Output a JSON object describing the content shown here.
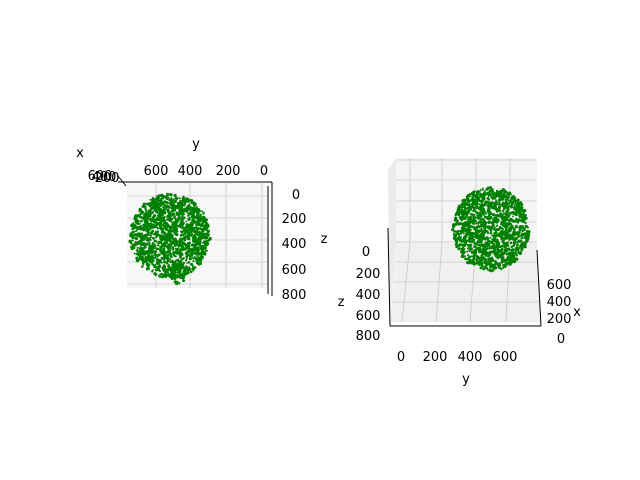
{
  "colors": {
    "points": "#008000",
    "pane": "#f2f2f2",
    "grid": "#b0b0b0",
    "axis": "#000000"
  },
  "chart_data": [
    {
      "type": "scatter",
      "projection": "3d",
      "xlabel": "x",
      "ylabel": "y",
      "zlabel": "z",
      "y_ticks": [
        "600",
        "400",
        "200",
        "0"
      ],
      "z_ticks": [
        "0",
        "200",
        "400",
        "600",
        "800"
      ],
      "x_ticks": [
        "600",
        "400",
        "200"
      ],
      "ylim": [
        0,
        800
      ],
      "zlim": [
        0,
        800
      ],
      "xlim": [
        0,
        800
      ],
      "grid": true,
      "series_color": "#008000"
    },
    {
      "type": "scatter",
      "projection": "3d",
      "xlabel": "x",
      "ylabel": "y",
      "zlabel": "z",
      "y_ticks": [
        "0",
        "200",
        "400",
        "600"
      ],
      "z_ticks": [
        "0",
        "200",
        "400",
        "600",
        "800"
      ],
      "x_ticks": [
        "600",
        "400",
        "200",
        "0"
      ],
      "ylim": [
        0,
        800
      ],
      "zlim": [
        0,
        800
      ],
      "xlim": [
        0,
        800
      ],
      "grid": true,
      "series_color": "#008000"
    }
  ]
}
